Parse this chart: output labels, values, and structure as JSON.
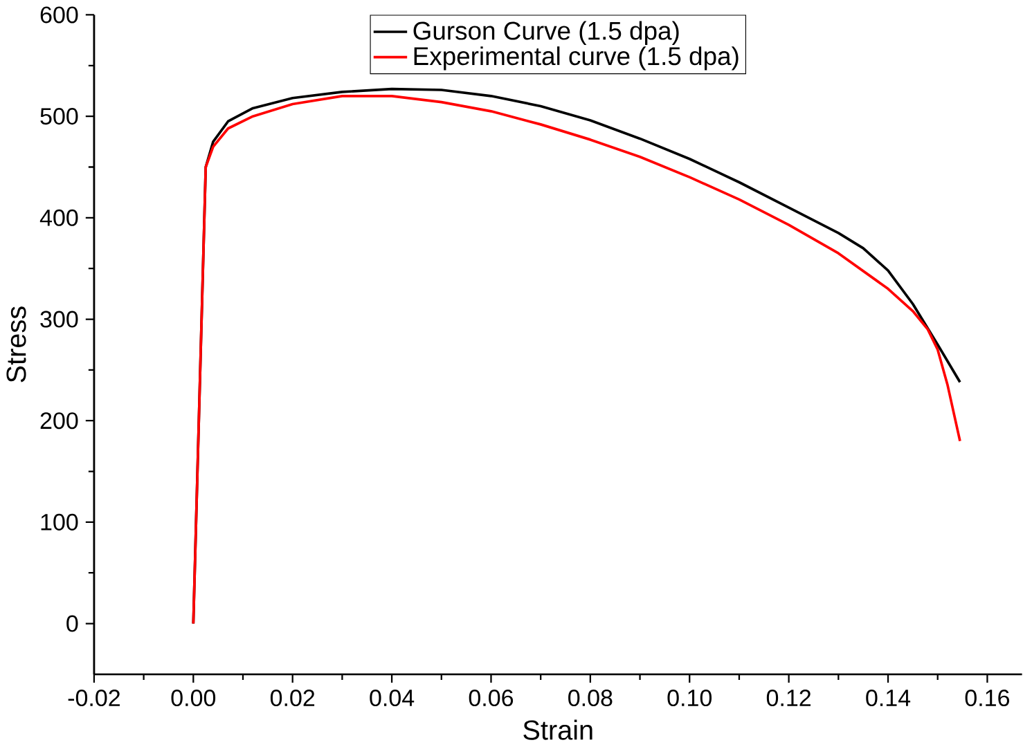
{
  "chart_data": {
    "type": "line",
    "xlabel": "Strain",
    "ylabel": "Stress",
    "xlim": [
      -0.02,
      0.167
    ],
    "ylim": [
      -50,
      600
    ],
    "xticks": [
      {
        "value": -0.02,
        "label": "-0.02"
      },
      {
        "value": 0,
        "label": "0.00"
      },
      {
        "value": 0.02,
        "label": "0.02"
      },
      {
        "value": 0.04,
        "label": "0.04"
      },
      {
        "value": 0.06,
        "label": "0.06"
      },
      {
        "value": 0.08,
        "label": "0.08"
      },
      {
        "value": 0.1,
        "label": "0.10"
      },
      {
        "value": 0.12,
        "label": "0.12"
      },
      {
        "value": 0.14,
        "label": "0.14"
      },
      {
        "value": 0.16,
        "label": "0.16"
      }
    ],
    "yticks": [
      0,
      100,
      200,
      300,
      400,
      500,
      600
    ],
    "grid": false,
    "legend": "top",
    "marker": "none",
    "line_style": "solid",
    "series": [
      {
        "name": "Gurson Curve (1.5 dpa)",
        "color": "#000000",
        "x": [
          0,
          0.0025,
          0.004,
          0.007,
          0.012,
          0.02,
          0.03,
          0.04,
          0.05,
          0.06,
          0.07,
          0.08,
          0.09,
          0.1,
          0.11,
          0.12,
          0.13,
          0.135,
          0.14,
          0.145,
          0.15,
          0.1545
        ],
        "values": [
          0,
          450,
          475,
          495,
          508,
          518,
          524,
          527,
          526,
          520,
          510,
          496,
          478,
          458,
          435,
          410,
          385,
          370,
          348,
          315,
          275,
          238
        ]
      },
      {
        "name": "Experimental curve (1.5 dpa)",
        "color": "#ff0000",
        "x": [
          0,
          0.0025,
          0.004,
          0.007,
          0.012,
          0.02,
          0.03,
          0.04,
          0.05,
          0.06,
          0.07,
          0.08,
          0.09,
          0.1,
          0.11,
          0.12,
          0.13,
          0.14,
          0.145,
          0.148,
          0.15,
          0.152,
          0.1545
        ],
        "values": [
          0,
          450,
          470,
          488,
          500,
          512,
          520,
          520,
          514,
          505,
          492,
          477,
          460,
          440,
          418,
          393,
          365,
          330,
          308,
          290,
          270,
          235,
          180
        ]
      }
    ]
  }
}
